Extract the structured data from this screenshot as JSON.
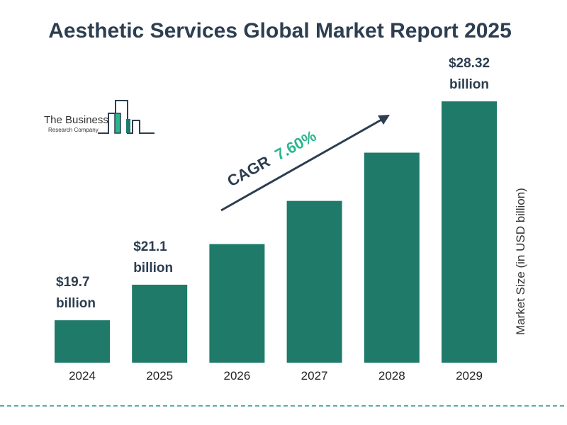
{
  "title": "Aesthetic Services Global Market Report 2025",
  "logo": {
    "line1": "The Business",
    "line2": "Research Company"
  },
  "cagr": {
    "label": "CAGR",
    "value": "7.60%"
  },
  "colors": {
    "bar": "#1f7a6a",
    "title": "#2c3e50",
    "cagr_value": "#2bb58e",
    "dashed_line": "#2a8f8a"
  },
  "chart_data": {
    "type": "bar",
    "categories": [
      "2024",
      "2025",
      "2026",
      "2027",
      "2028",
      "2029"
    ],
    "values": [
      19.7,
      21.1,
      22.7,
      24.4,
      26.3,
      28.32
    ],
    "data_labels": [
      [
        "$19.7",
        "billion"
      ],
      [
        "$21.1",
        "billion"
      ],
      null,
      null,
      null,
      [
        "$28.32",
        "billion"
      ]
    ],
    "title": "Aesthetic Services Global Market Report 2025",
    "xlabel": "",
    "ylabel": "Market Size (in USD billion)",
    "grid": false
  }
}
